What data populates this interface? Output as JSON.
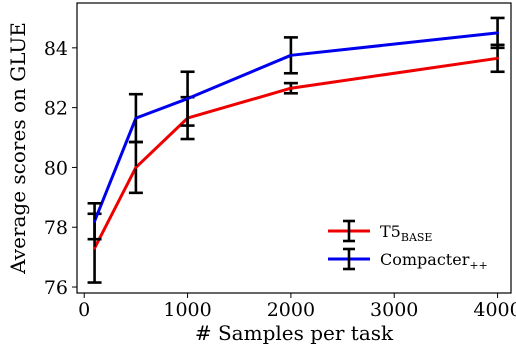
{
  "chart_data": {
    "type": "line",
    "xlabel": "# Samples per task",
    "ylabel": "Average scores on GLUE",
    "xlim": [
      -70,
      4130
    ],
    "ylim": [
      75.8,
      85.5
    ],
    "xticks": [
      0,
      1000,
      2000,
      3000,
      4000
    ],
    "yticks": [
      76,
      78,
      80,
      82,
      84
    ],
    "x": [
      100,
      500,
      1000,
      2000,
      4000
    ],
    "grid": false,
    "legend_position": "lower-right",
    "series": [
      {
        "name": "T5",
        "name_sub": "BASE",
        "color": "#ee0000",
        "values": [
          77.3,
          80.0,
          81.65,
          82.65,
          83.65
        ],
        "errors": [
          1.15,
          0.85,
          0.7,
          0.17,
          0.45
        ]
      },
      {
        "name": "Compacter",
        "name_sub": "++",
        "color": "#0000ee",
        "values": [
          78.2,
          81.65,
          82.3,
          83.75,
          84.5
        ],
        "errors": [
          0.6,
          0.8,
          0.9,
          0.6,
          0.5
        ]
      }
    ],
    "errorbar_color": "#000000"
  }
}
